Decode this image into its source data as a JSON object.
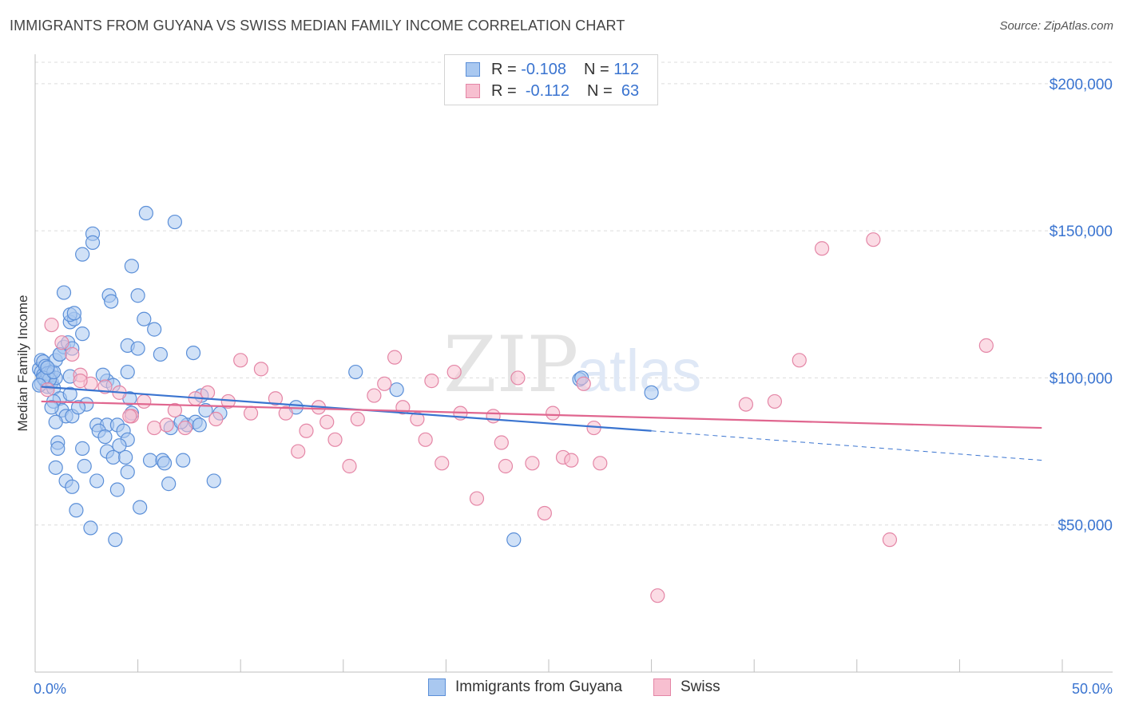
{
  "header": {
    "title": "IMMIGRANTS FROM GUYANA VS SWISS MEDIAN FAMILY INCOME CORRELATION CHART",
    "source": "Source: ZipAtlas.com"
  },
  "legend": {
    "r_label": "R =",
    "n_label": "N =",
    "series": [
      {
        "r": "-0.108",
        "n": "112"
      },
      {
        "r": "-0.112",
        "n": "63"
      }
    ]
  },
  "colors": {
    "guyana_fill": "#a9c8f0",
    "guyana_stroke": "#5b8fd8",
    "guyana_line": "#3a74d0",
    "swiss_fill": "#f7bfd0",
    "swiss_stroke": "#e486a6",
    "swiss_line": "#e0668f",
    "axis_text": "#3a74d0",
    "grid": "#dcdcdc"
  },
  "chart_data": {
    "type": "scatter",
    "title": "IMMIGRANTS FROM GUYANA VS SWISS MEDIAN FAMILY INCOME CORRELATION CHART",
    "xlabel": "",
    "ylabel": "Median Family Income",
    "xlim": [
      0,
      50
    ],
    "ylim": [
      0,
      210000
    ],
    "x_tick_labels": [
      "0.0%",
      "50.0%"
    ],
    "y_ticks": [
      50000,
      100000,
      150000,
      200000
    ],
    "y_tick_labels": [
      "$50,000",
      "$100,000",
      "$150,000",
      "$200,000"
    ],
    "watermark": {
      "zip": "ZIP",
      "atlas": "atlas"
    },
    "series": [
      {
        "name": "Immigrants from Guyana",
        "r": -0.108,
        "n": 112,
        "trend": {
          "x0": 0.3,
          "y0": 97000,
          "x1": 30,
          "y1": 82000,
          "dash_x1": 49,
          "dash_y1": 72000
        },
        "points": [
          [
            0.2,
            103000
          ],
          [
            0.3,
            102000
          ],
          [
            0.4,
            101000
          ],
          [
            0.5,
            100500
          ],
          [
            0.6,
            102500
          ],
          [
            0.3,
            106000
          ],
          [
            0.4,
            105500
          ],
          [
            0.5,
            104000
          ],
          [
            0.7,
            101000
          ],
          [
            0.8,
            102000
          ],
          [
            0.3,
            98000
          ],
          [
            0.5,
            99000
          ],
          [
            0.6,
            97000
          ],
          [
            0.8,
            98500
          ],
          [
            0.9,
            96500
          ],
          [
            1.0,
            100000
          ],
          [
            0.6,
            101500
          ],
          [
            0.7,
            99500
          ],
          [
            0.4,
            100000
          ],
          [
            0.9,
            102000
          ],
          [
            1.0,
            106000
          ],
          [
            1.2,
            108000
          ],
          [
            1.4,
            110500
          ],
          [
            1.6,
            112000
          ],
          [
            1.8,
            110000
          ],
          [
            2.3,
            115000
          ],
          [
            1.7,
            119000
          ],
          [
            1.9,
            120000
          ],
          [
            1.7,
            121500
          ],
          [
            1.9,
            122000
          ],
          [
            1.4,
            129000
          ],
          [
            2.3,
            142000
          ],
          [
            2.8,
            149000
          ],
          [
            2.8,
            146000
          ],
          [
            3.6,
            128000
          ],
          [
            3.7,
            126000
          ],
          [
            5.0,
            128000
          ],
          [
            4.7,
            138000
          ],
          [
            5.4,
            156000
          ],
          [
            6.8,
            153000
          ],
          [
            5.3,
            120000
          ],
          [
            5.8,
            116500
          ],
          [
            4.5,
            111000
          ],
          [
            5.0,
            110000
          ],
          [
            6.1,
            108000
          ],
          [
            7.7,
            108500
          ],
          [
            1.7,
            100500
          ],
          [
            1.2,
            93000
          ],
          [
            1.7,
            94500
          ],
          [
            2.5,
            91000
          ],
          [
            3.5,
            99000
          ],
          [
            3.3,
            101000
          ],
          [
            4.5,
            102000
          ],
          [
            4.6,
            93000
          ],
          [
            4.7,
            88000
          ],
          [
            3.8,
            97500
          ],
          [
            1.3,
            89000
          ],
          [
            1.5,
            87000
          ],
          [
            0.9,
            92000
          ],
          [
            0.8,
            90000
          ],
          [
            1.0,
            85000
          ],
          [
            1.8,
            87000
          ],
          [
            2.1,
            90000
          ],
          [
            3.0,
            84000
          ],
          [
            3.5,
            84000
          ],
          [
            4.0,
            84000
          ],
          [
            4.3,
            82000
          ],
          [
            3.1,
            82000
          ],
          [
            3.4,
            80000
          ],
          [
            4.5,
            79000
          ],
          [
            4.1,
            77000
          ],
          [
            3.5,
            75000
          ],
          [
            3.8,
            73000
          ],
          [
            4.4,
            73000
          ],
          [
            5.6,
            72000
          ],
          [
            6.2,
            72000
          ],
          [
            6.3,
            71000
          ],
          [
            7.2,
            72000
          ],
          [
            6.6,
            83000
          ],
          [
            7.4,
            84000
          ],
          [
            7.8,
            85000
          ],
          [
            8.0,
            84000
          ],
          [
            8.3,
            89000
          ],
          [
            8.1,
            94000
          ],
          [
            1.1,
            78000
          ],
          [
            1.1,
            76000
          ],
          [
            2.3,
            76000
          ],
          [
            2.4,
            70000
          ],
          [
            1.0,
            69500
          ],
          [
            1.5,
            65000
          ],
          [
            1.8,
            63000
          ],
          [
            3.0,
            65000
          ],
          [
            4.0,
            62000
          ],
          [
            4.5,
            68000
          ],
          [
            5.1,
            56000
          ],
          [
            6.5,
            64000
          ],
          [
            8.7,
            65000
          ],
          [
            2.0,
            55000
          ],
          [
            2.7,
            49000
          ],
          [
            3.9,
            45000
          ],
          [
            7.1,
            85000
          ],
          [
            9.0,
            88000
          ],
          [
            12.7,
            90000
          ],
          [
            15.6,
            102000
          ],
          [
            17.6,
            96000
          ],
          [
            23.3,
            45000
          ],
          [
            26.5,
            99500
          ],
          [
            26.6,
            100000
          ],
          [
            30.0,
            95000
          ],
          [
            0.2,
            97500
          ],
          [
            0.6,
            103500
          ],
          [
            1.2,
            108000
          ]
        ]
      },
      {
        "name": "Swiss",
        "r": -0.112,
        "n": 63,
        "trend": {
          "x0": 0.3,
          "y0": 92000,
          "x1": 49,
          "y1": 83000
        },
        "points": [
          [
            0.6,
            96000
          ],
          [
            0.8,
            118000
          ],
          [
            1.3,
            112000
          ],
          [
            1.8,
            108000
          ],
          [
            2.2,
            101000
          ],
          [
            2.7,
            98000
          ],
          [
            3.4,
            97000
          ],
          [
            4.1,
            95000
          ],
          [
            4.7,
            87000
          ],
          [
            5.3,
            92000
          ],
          [
            5.8,
            83000
          ],
          [
            6.4,
            84000
          ],
          [
            6.8,
            89000
          ],
          [
            7.3,
            83000
          ],
          [
            7.8,
            93000
          ],
          [
            8.4,
            95000
          ],
          [
            8.8,
            86000
          ],
          [
            9.4,
            92000
          ],
          [
            10.0,
            106000
          ],
          [
            10.5,
            88000
          ],
          [
            11.0,
            103000
          ],
          [
            11.7,
            93000
          ],
          [
            12.2,
            88000
          ],
          [
            12.8,
            75000
          ],
          [
            13.2,
            82000
          ],
          [
            13.8,
            90000
          ],
          [
            14.2,
            85000
          ],
          [
            14.6,
            79000
          ],
          [
            15.3,
            70000
          ],
          [
            15.7,
            86000
          ],
          [
            16.5,
            94000
          ],
          [
            17.0,
            98000
          ],
          [
            17.5,
            107000
          ],
          [
            17.9,
            90000
          ],
          [
            18.6,
            86000
          ],
          [
            19.0,
            79000
          ],
          [
            19.3,
            99000
          ],
          [
            19.8,
            71000
          ],
          [
            20.4,
            102000
          ],
          [
            20.7,
            88000
          ],
          [
            21.5,
            59000
          ],
          [
            22.3,
            87000
          ],
          [
            22.7,
            78000
          ],
          [
            22.9,
            70000
          ],
          [
            23.5,
            100000
          ],
          [
            24.2,
            71000
          ],
          [
            24.8,
            54000
          ],
          [
            25.2,
            88000
          ],
          [
            25.7,
            73000
          ],
          [
            26.1,
            72000
          ],
          [
            26.7,
            98000
          ],
          [
            27.2,
            83000
          ],
          [
            27.5,
            71000
          ],
          [
            30.3,
            26000
          ],
          [
            34.6,
            91000
          ],
          [
            36.0,
            92000
          ],
          [
            37.2,
            106000
          ],
          [
            38.3,
            144000
          ],
          [
            40.8,
            147000
          ],
          [
            41.6,
            45000
          ],
          [
            46.3,
            111000
          ],
          [
            4.6,
            87000
          ],
          [
            2.2,
            99000
          ]
        ]
      }
    ]
  }
}
